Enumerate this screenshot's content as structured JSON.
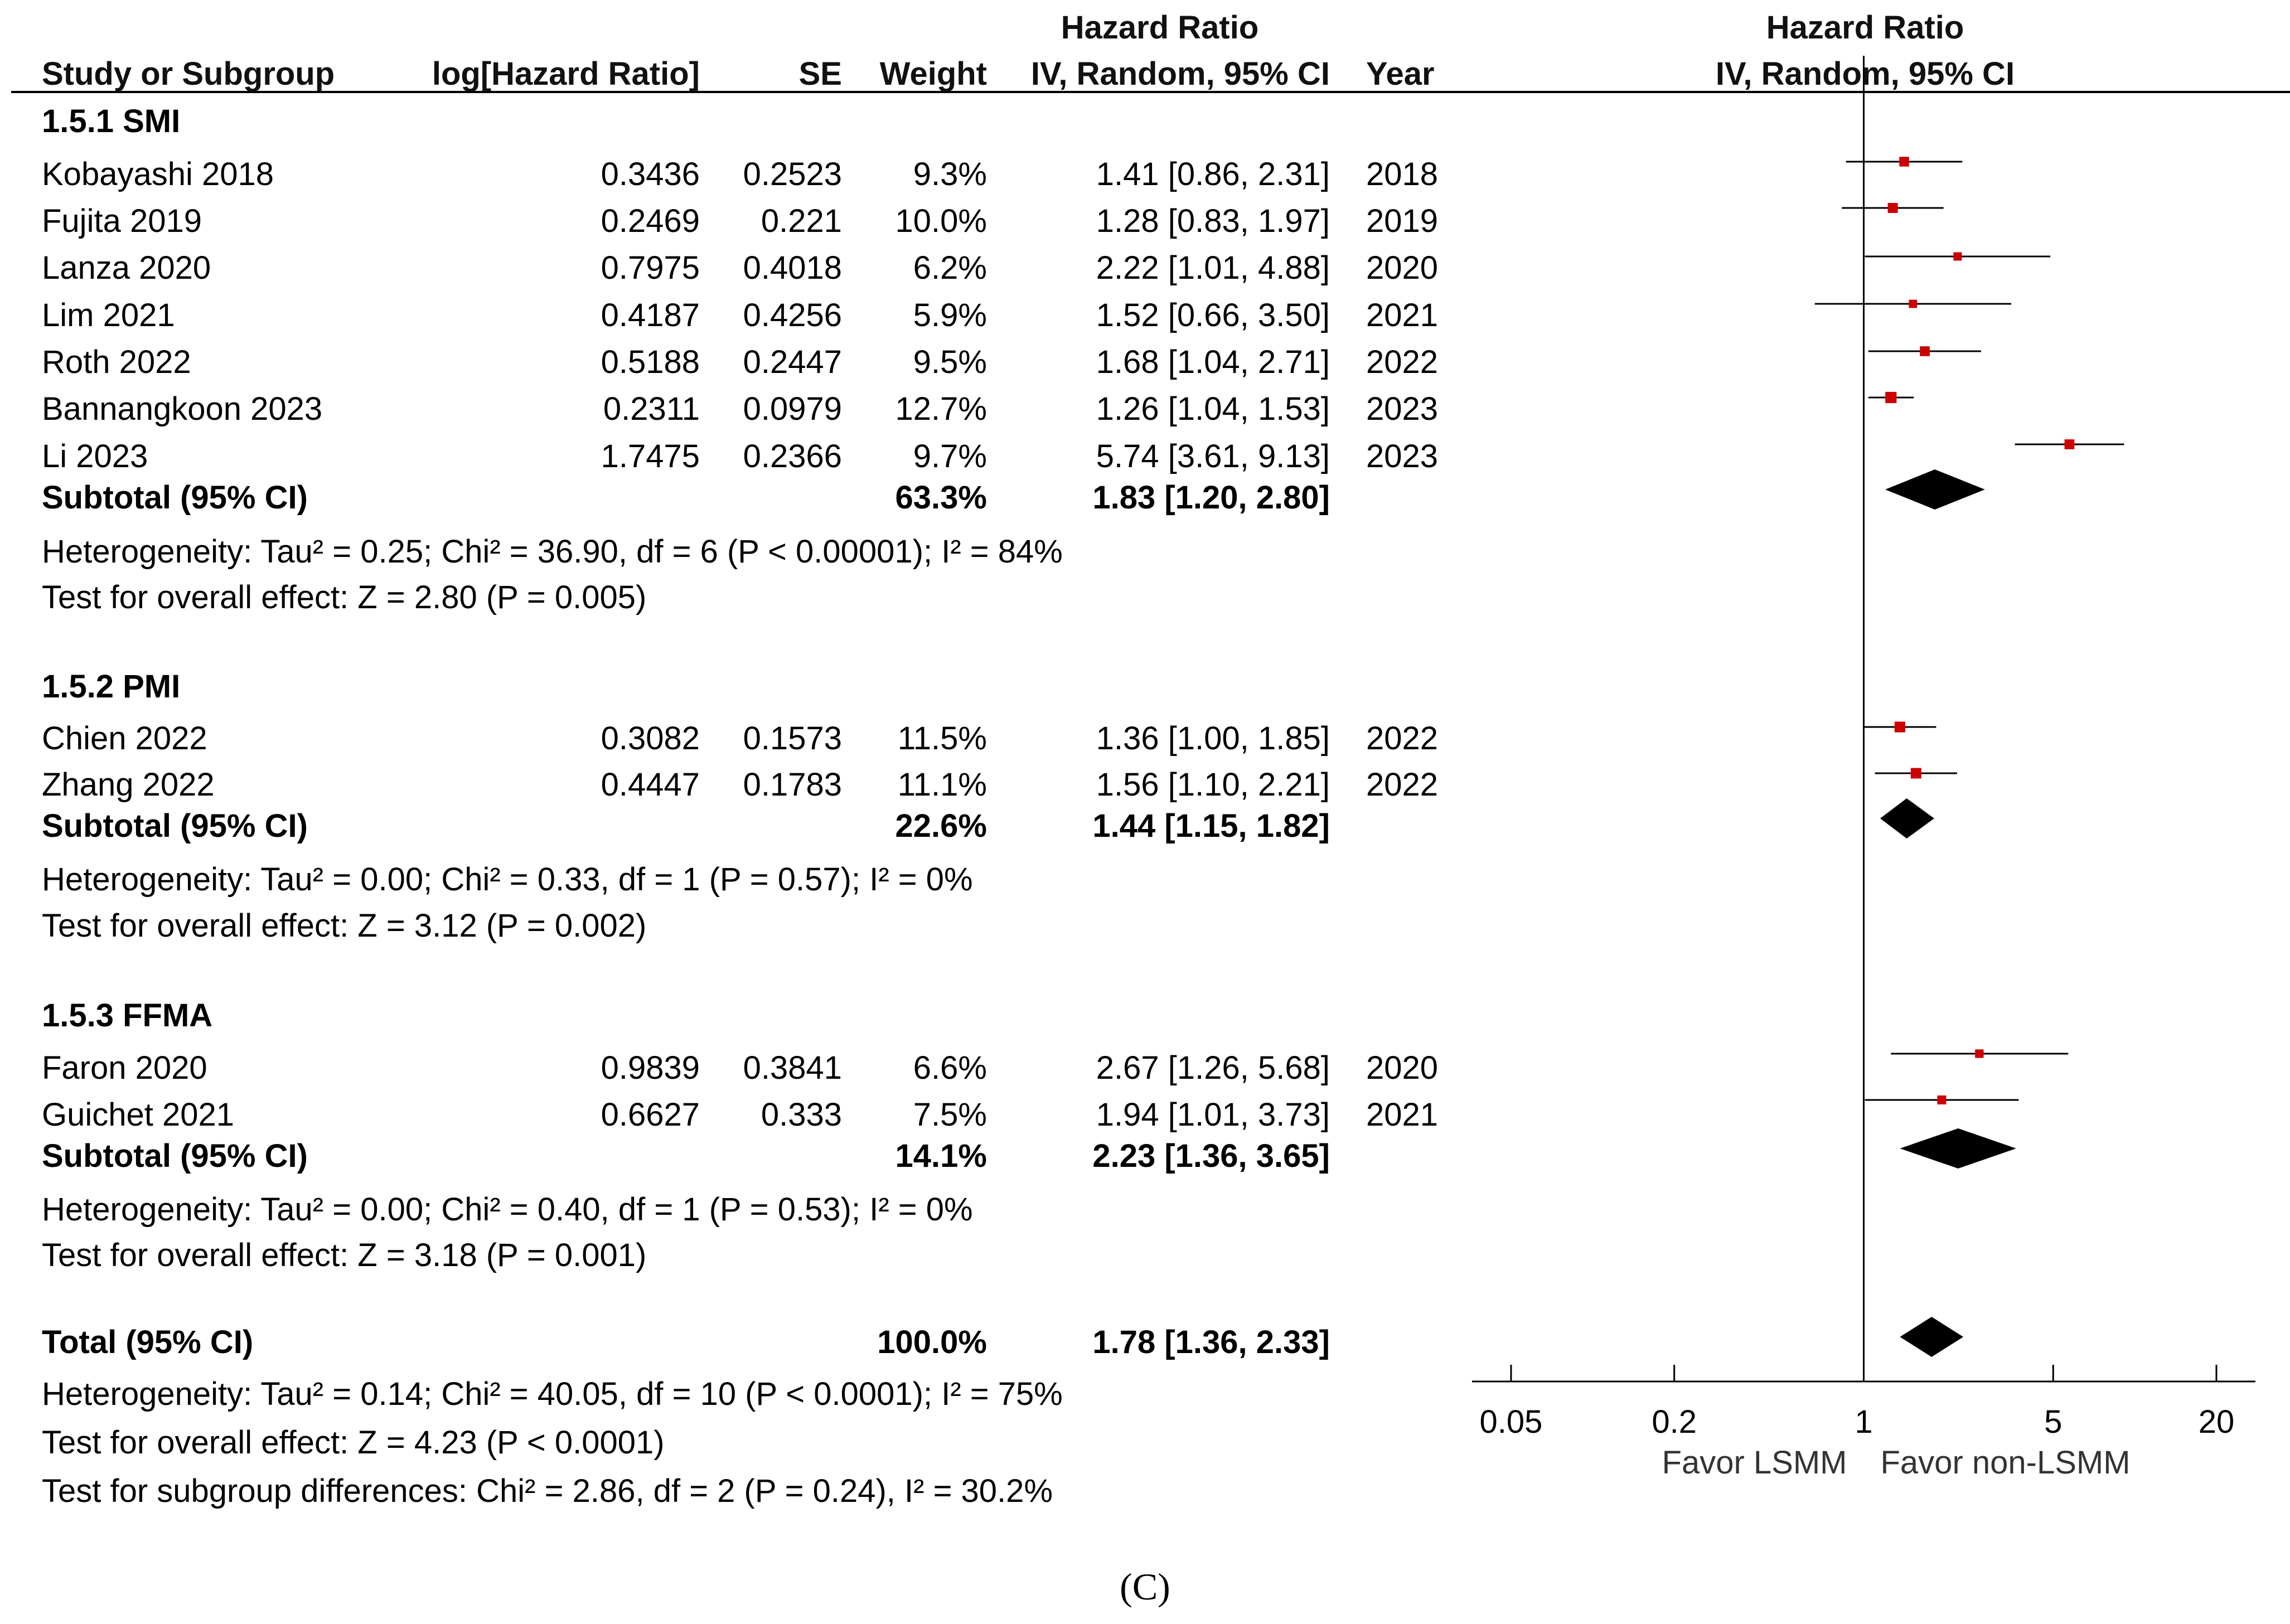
{
  "header": {
    "hr_group_left": "Hazard Ratio",
    "hr_group_right": "Hazard Ratio",
    "study": "Study or Subgroup",
    "loghr": "log[Hazard Ratio]",
    "se": "SE",
    "weight": "Weight",
    "ci": "IV, Random, 95% CI",
    "year": "Year",
    "ci_right": "IV, Random, 95% CI"
  },
  "groups": [
    {
      "title": "1.5.1 SMI",
      "studies": [
        {
          "name": "Kobayashi 2018",
          "loghr": "0.3436",
          "se": "0.2523",
          "weight": "9.3%",
          "ci": "1.41 [0.86, 2.31]",
          "year": "2018"
        },
        {
          "name": "Fujita 2019",
          "loghr": "0.2469",
          "se": "0.221",
          "weight": "10.0%",
          "ci": "1.28 [0.83, 1.97]",
          "year": "2019"
        },
        {
          "name": "Lanza 2020",
          "loghr": "0.7975",
          "se": "0.4018",
          "weight": "6.2%",
          "ci": "2.22 [1.01, 4.88]",
          "year": "2020"
        },
        {
          "name": "Lim 2021",
          "loghr": "0.4187",
          "se": "0.4256",
          "weight": "5.9%",
          "ci": "1.52 [0.66, 3.50]",
          "year": "2021"
        },
        {
          "name": "Roth 2022",
          "loghr": "0.5188",
          "se": "0.2447",
          "weight": "9.5%",
          "ci": "1.68 [1.04, 2.71]",
          "year": "2022"
        },
        {
          "name": "Bannangkoon 2023",
          "loghr": "0.2311",
          "se": "0.0979",
          "weight": "12.7%",
          "ci": "1.26 [1.04, 1.53]",
          "year": "2023"
        },
        {
          "name": "Li 2023",
          "loghr": "1.7475",
          "se": "0.2366",
          "weight": "9.7%",
          "ci": "5.74 [3.61, 9.13]",
          "year": "2023"
        }
      ],
      "subtotal": {
        "label": "Subtotal (95% CI)",
        "weight": "63.3%",
        "ci": "1.83 [1.20, 2.80]"
      },
      "heterogeneity": "Heterogeneity: Tau² = 0.25; Chi² = 36.90, df = 6 (P < 0.00001); I² = 84%",
      "overall": "Test for overall effect: Z = 2.80 (P = 0.005)"
    },
    {
      "title": "1.5.2 PMI",
      "studies": [
        {
          "name": "Chien 2022",
          "loghr": "0.3082",
          "se": "0.1573",
          "weight": "11.5%",
          "ci": "1.36 [1.00, 1.85]",
          "year": "2022"
        },
        {
          "name": "Zhang 2022",
          "loghr": "0.4447",
          "se": "0.1783",
          "weight": "11.1%",
          "ci": "1.56 [1.10, 2.21]",
          "year": "2022"
        }
      ],
      "subtotal": {
        "label": "Subtotal (95% CI)",
        "weight": "22.6%",
        "ci": "1.44 [1.15, 1.82]"
      },
      "heterogeneity": "Heterogeneity: Tau² = 0.00; Chi² = 0.33, df = 1 (P = 0.57); I² = 0%",
      "overall": "Test for overall effect: Z = 3.12 (P = 0.002)"
    },
    {
      "title": "1.5.3 FFMA",
      "studies": [
        {
          "name": "Faron 2020",
          "loghr": "0.9839",
          "se": "0.3841",
          "weight": "6.6%",
          "ci": "2.67 [1.26, 5.68]",
          "year": "2020"
        },
        {
          "name": "Guichet 2021",
          "loghr": "0.6627",
          "se": "0.333",
          "weight": "7.5%",
          "ci": "1.94 [1.01, 3.73]",
          "year": "2021"
        }
      ],
      "subtotal": {
        "label": "Subtotal (95% CI)",
        "weight": "14.1%",
        "ci": "2.23 [1.36, 3.65]"
      },
      "heterogeneity": "Heterogeneity: Tau² = 0.00; Chi² = 0.40, df = 1 (P = 0.53); I² = 0%",
      "overall": "Test for overall effect: Z = 3.18 (P = 0.001)"
    }
  ],
  "total": {
    "label": "Total (95% CI)",
    "weight": "100.0%",
    "ci": "1.78 [1.36, 2.33]",
    "heterogeneity": "Heterogeneity: Tau² = 0.14; Chi² = 40.05, df = 10 (P < 0.0001); I² = 75%",
    "overall": "Test for overall effect: Z = 4.23 (P < 0.0001)",
    "subgroup": "Test for subgroup differences: Chi² = 2.86, df = 2 (P = 0.24), I² = 30.2%"
  },
  "caption": "(C)",
  "chart_data": {
    "type": "scatter",
    "title": "Hazard Ratio IV, Random, 95% CI",
    "scale": "log",
    "xlim": [
      0.05,
      20
    ],
    "xticks": [
      "0.05",
      "0.2",
      "1",
      "5",
      "20"
    ],
    "reference_line": 1,
    "xlabel_left": "Favor LSMM",
    "xlabel_right": "Favor non-LSMM",
    "study_points": [
      {
        "name": "Kobayashi 2018",
        "hr": 1.41,
        "lo": 0.86,
        "hi": 2.31,
        "weight": 9.3
      },
      {
        "name": "Fujita 2019",
        "hr": 1.28,
        "lo": 0.83,
        "hi": 1.97,
        "weight": 10.0
      },
      {
        "name": "Lanza 2020",
        "hr": 2.22,
        "lo": 1.01,
        "hi": 4.88,
        "weight": 6.2
      },
      {
        "name": "Lim 2021",
        "hr": 1.52,
        "lo": 0.66,
        "hi": 3.5,
        "weight": 5.9
      },
      {
        "name": "Roth 2022",
        "hr": 1.68,
        "lo": 1.04,
        "hi": 2.71,
        "weight": 9.5
      },
      {
        "name": "Bannangkoon 2023",
        "hr": 1.26,
        "lo": 1.04,
        "hi": 1.53,
        "weight": 12.7
      },
      {
        "name": "Li 2023",
        "hr": 5.74,
        "lo": 3.61,
        "hi": 9.13,
        "weight": 9.7
      },
      {
        "name": "Chien 2022",
        "hr": 1.36,
        "lo": 1.0,
        "hi": 1.85,
        "weight": 11.5
      },
      {
        "name": "Zhang 2022",
        "hr": 1.56,
        "lo": 1.1,
        "hi": 2.21,
        "weight": 11.1
      },
      {
        "name": "Faron 2020",
        "hr": 2.67,
        "lo": 1.26,
        "hi": 5.68,
        "weight": 6.6
      },
      {
        "name": "Guichet 2021",
        "hr": 1.94,
        "lo": 1.01,
        "hi": 3.73,
        "weight": 7.5
      }
    ],
    "diamonds": [
      {
        "name": "Subtotal SMI",
        "hr": 1.83,
        "lo": 1.2,
        "hi": 2.8
      },
      {
        "name": "Subtotal PMI",
        "hr": 1.44,
        "lo": 1.15,
        "hi": 1.82
      },
      {
        "name": "Subtotal FFMA",
        "hr": 2.23,
        "lo": 1.36,
        "hi": 3.65
      },
      {
        "name": "Total",
        "hr": 1.78,
        "lo": 1.36,
        "hi": 2.33
      }
    ],
    "colors": {
      "point": "#cc0000",
      "diamond": "#000000",
      "line": "#000000"
    }
  }
}
